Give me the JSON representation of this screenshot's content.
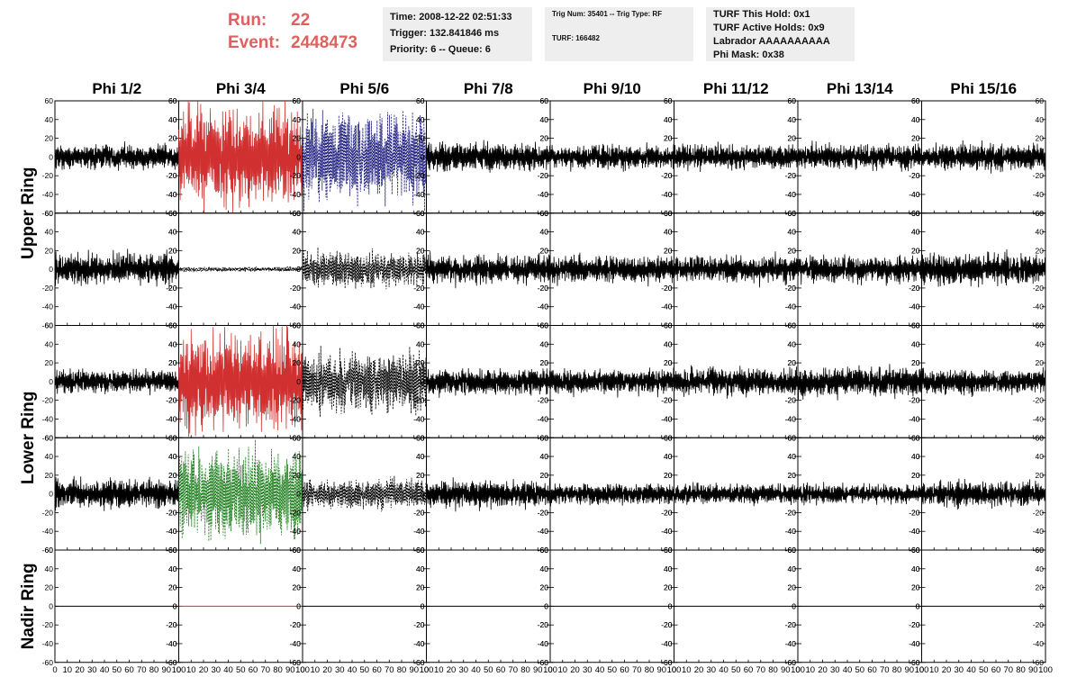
{
  "header": {
    "run_label": "Run:",
    "run_value": "22",
    "event_label": "Event:",
    "event_value": "2448473",
    "time_line": "Time: 2008-12-22 02:51:33",
    "trigger_line": "Trigger: 132.841846 ms",
    "priority_line": "Priority: 6 -- Queue: 6",
    "trig_line": "Trig Num: 35401 -- Trig Type: RF",
    "turf_line": "TURF: 166482",
    "hold_line": "TURF This Hold: 0x1",
    "active_holds_line": "TURF Active Holds: 0x9",
    "labrador_line": "Labrador AAAAAAAAAA",
    "phi_mask_line": "Phi Mask: 0x38"
  },
  "colors": {
    "header_red": "#e06060",
    "trace_black": "#000000",
    "trace_red": "#d03030",
    "trace_blue": "#202080",
    "trace_green": "#208020",
    "info_box_bg": "#eeeeee"
  },
  "chart_data": {
    "type": "line",
    "layout": "grid of waveform panels",
    "columns": [
      "Phi 1/2",
      "Phi 3/4",
      "Phi 5/6",
      "Phi 7/8",
      "Phi 9/10",
      "Phi 11/12",
      "Phi 13/14",
      "Phi 15/16"
    ],
    "ring_labels": [
      {
        "label": "Upper Ring",
        "rows": [
          0,
          1
        ]
      },
      {
        "label": "Lower Ring",
        "rows": [
          2,
          3
        ]
      },
      {
        "label": "Nadir Ring",
        "rows": [
          4
        ]
      }
    ],
    "xlim": [
      0,
      100
    ],
    "ylim": [
      -60,
      60
    ],
    "xticks": [
      0,
      10,
      20,
      30,
      40,
      50,
      60,
      70,
      80,
      90,
      100
    ],
    "xtick_labels": [
      "0",
      "10",
      "20",
      "30",
      "40",
      "50",
      "60",
      "70",
      "80",
      "90",
      "100"
    ],
    "yticks": [
      -60,
      -40,
      -20,
      0,
      20,
      40,
      60
    ],
    "ytick_labels": [
      "-60",
      "-40",
      "-20",
      "0",
      "20",
      "40",
      "60"
    ],
    "samples_per_trace": 260,
    "grid": false,
    "panels": [
      [
        {
          "amp": 15,
          "color": "black",
          "dashed": false
        },
        {
          "amp": 60,
          "color": "red",
          "dashed": false
        },
        {
          "amp": 55,
          "color": "blue",
          "dashed": true
        },
        {
          "amp": 17,
          "color": "black",
          "dashed": false
        },
        {
          "amp": 15,
          "color": "black",
          "dashed": false
        },
        {
          "amp": 15,
          "color": "black",
          "dashed": false
        },
        {
          "amp": 16,
          "color": "black",
          "dashed": false
        },
        {
          "amp": 17,
          "color": "black",
          "dashed": false
        }
      ],
      [
        {
          "amp": 20,
          "color": "black",
          "dashed": false
        },
        {
          "amp": 3,
          "color": "black",
          "dashed": true
        },
        {
          "amp": 22,
          "color": "black",
          "dashed": true
        },
        {
          "amp": 18,
          "color": "black",
          "dashed": false
        },
        {
          "amp": 17,
          "color": "black",
          "dashed": false
        },
        {
          "amp": 17,
          "color": "black",
          "dashed": false
        },
        {
          "amp": 16,
          "color": "black",
          "dashed": false
        },
        {
          "amp": 19,
          "color": "black",
          "dashed": false
        }
      ],
      [
        {
          "amp": 14,
          "color": "black",
          "dashed": false
        },
        {
          "amp": 60,
          "color": "red",
          "dashed": false
        },
        {
          "amp": 38,
          "color": "black",
          "dashed": true
        },
        {
          "amp": 16,
          "color": "black",
          "dashed": false
        },
        {
          "amp": 16,
          "color": "black",
          "dashed": false
        },
        {
          "amp": 17,
          "color": "black",
          "dashed": false
        },
        {
          "amp": 18,
          "color": "black",
          "dashed": false
        },
        {
          "amp": 15,
          "color": "black",
          "dashed": false
        }
      ],
      [
        {
          "amp": 18,
          "color": "black",
          "dashed": false
        },
        {
          "amp": 55,
          "color": "green",
          "dashed": true
        },
        {
          "amp": 18,
          "color": "black",
          "dashed": true
        },
        {
          "amp": 17,
          "color": "black",
          "dashed": false
        },
        {
          "amp": 13,
          "color": "black",
          "dashed": false
        },
        {
          "amp": 12,
          "color": "black",
          "dashed": false
        },
        {
          "amp": 12,
          "color": "black",
          "dashed": false
        },
        {
          "amp": 16,
          "color": "black",
          "dashed": false
        }
      ],
      [
        {
          "amp": 0,
          "color": "black",
          "dashed": false
        },
        {
          "amp": 0,
          "color": "red",
          "dashed": false
        },
        {
          "amp": 0,
          "color": "black",
          "dashed": false
        },
        {
          "amp": 0,
          "color": "black",
          "dashed": false
        },
        {
          "amp": 0,
          "color": "black",
          "dashed": false
        },
        {
          "amp": 0,
          "color": "black",
          "dashed": false
        },
        {
          "amp": 0,
          "color": "black",
          "dashed": false
        },
        {
          "amp": 0,
          "color": "black",
          "dashed": false
        }
      ]
    ]
  }
}
